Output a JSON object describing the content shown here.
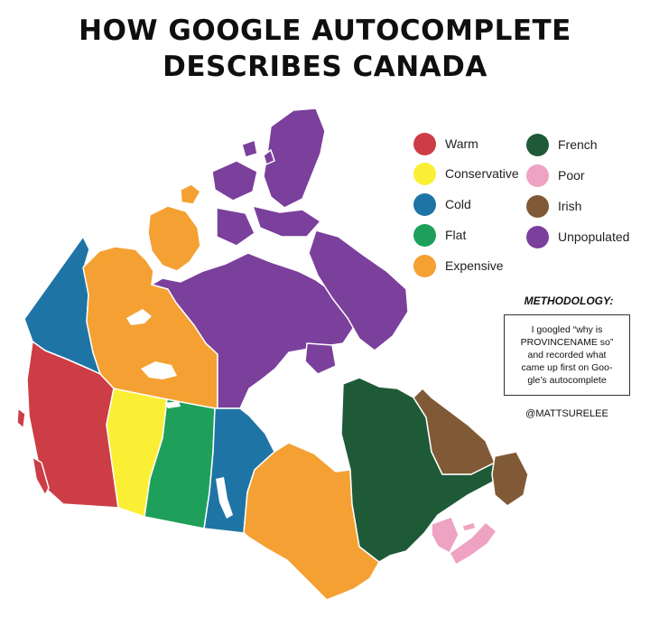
{
  "title": {
    "line1": "HOW GOOGLE AUTOCOMPLETE",
    "line2": "DESCRIBES CANADA"
  },
  "legend": {
    "col1": [
      {
        "label": "Warm",
        "color": "#cc3d45"
      },
      {
        "label": "Conservative",
        "color": "#fbef35"
      },
      {
        "label": "Cold",
        "color": "#1f74a6"
      },
      {
        "label": "Flat",
        "color": "#1ea05a"
      },
      {
        "label": "Expensive",
        "color": "#f5a032"
      }
    ],
    "col2": [
      {
        "label": "French",
        "color": "#1e5a37"
      },
      {
        "label": "Poor",
        "color": "#efa3c3"
      },
      {
        "label": "Irish",
        "color": "#805a36"
      },
      {
        "label": "Unpopulated",
        "color": "#7b3f9c"
      }
    ]
  },
  "methodology": {
    "heading": "METHODOLOGY:",
    "text": "I googled “why is\nPROVINCENAME so”\nand recorded what\ncame up first on Goo-\ngle’s autocomplete"
  },
  "credit": "@MATTSURELEE",
  "regions": [
    {
      "name": "Yukon",
      "descriptor": "Cold"
    },
    {
      "name": "Northwest Territories",
      "descriptor": "Expensive"
    },
    {
      "name": "Nunavut",
      "descriptor": "Unpopulated"
    },
    {
      "name": "British Columbia",
      "descriptor": "Warm"
    },
    {
      "name": "Alberta",
      "descriptor": "Conservative"
    },
    {
      "name": "Saskatchewan",
      "descriptor": "Flat"
    },
    {
      "name": "Manitoba",
      "descriptor": "Cold"
    },
    {
      "name": "Ontario",
      "descriptor": "Expensive"
    },
    {
      "name": "Quebec",
      "descriptor": "French"
    },
    {
      "name": "Newfoundland and Labrador",
      "descriptor": "Irish"
    },
    {
      "name": "Nova Scotia",
      "descriptor": "Poor"
    },
    {
      "name": "New Brunswick",
      "descriptor": "Poor"
    },
    {
      "name": "Prince Edward Island",
      "descriptor": "Poor"
    }
  ],
  "colors": {
    "Warm": "#cc3d45",
    "Conservative": "#fbef35",
    "Cold": "#1f74a6",
    "Flat": "#1ea05a",
    "Expensive": "#f5a032",
    "French": "#1e5a37",
    "Poor": "#efa3c3",
    "Irish": "#805a36",
    "Unpopulated": "#7b3f9c"
  }
}
